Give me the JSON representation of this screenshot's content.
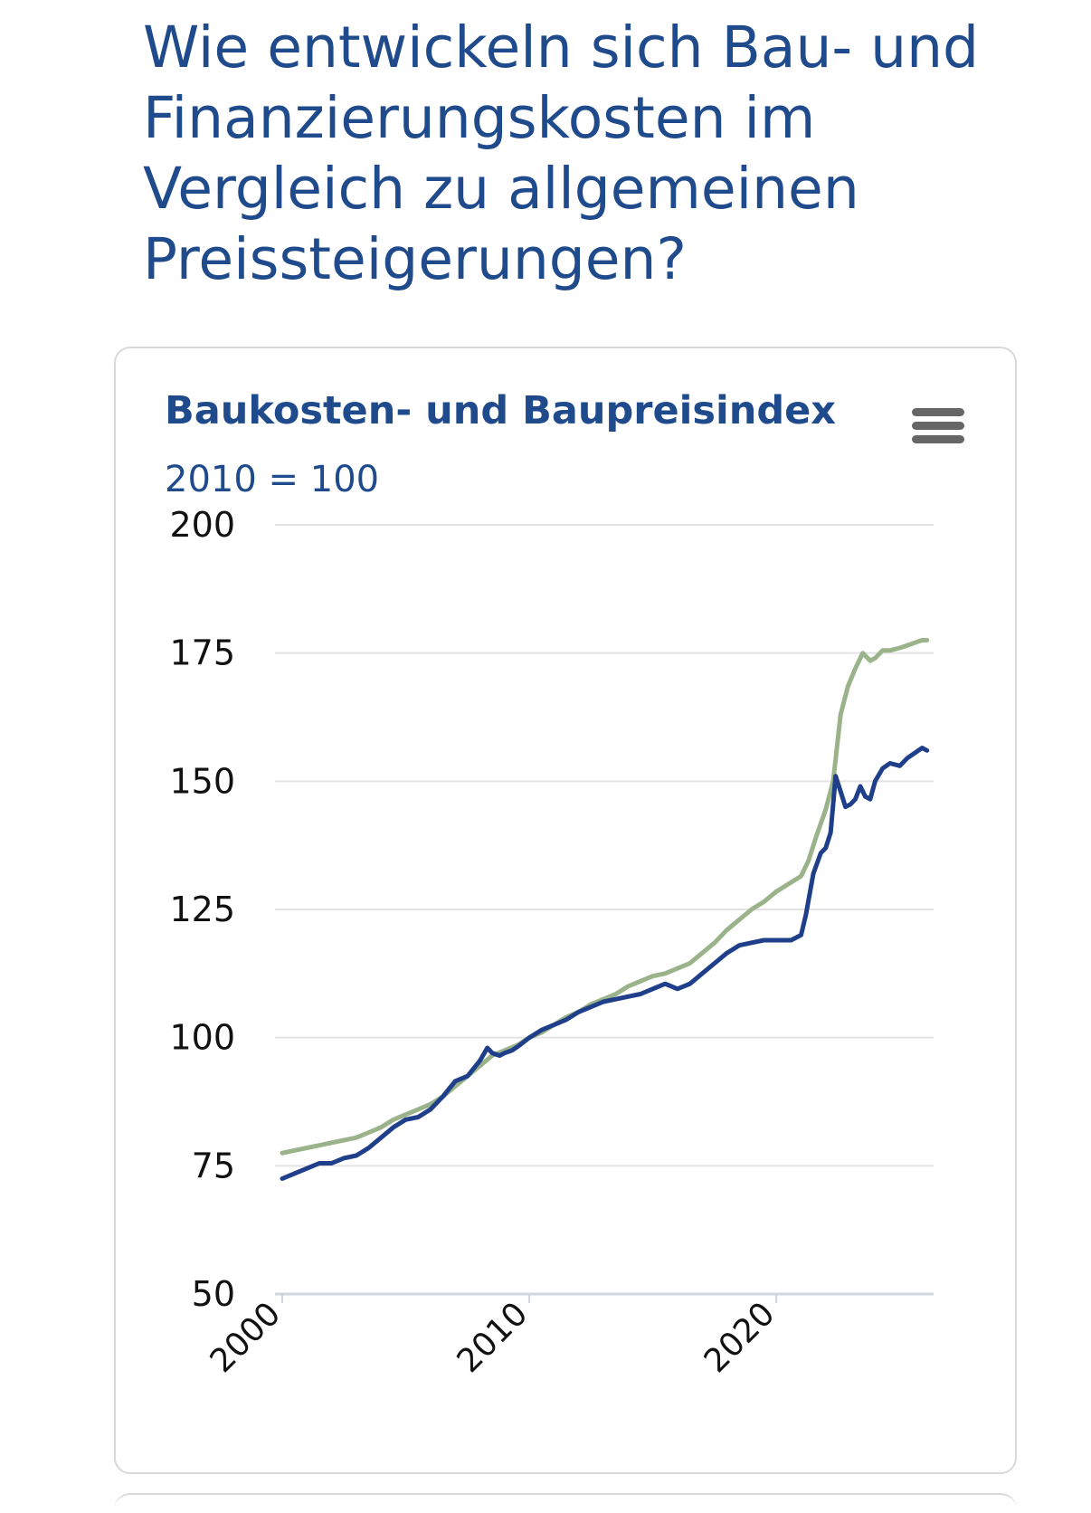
{
  "page": {
    "title": "Wie entwickeln sich Bau- und Finanzierungskosten im Vergleich zu allgemeinen Preissteigerungen?"
  },
  "chart_data": {
    "type": "line",
    "title": "Baukosten- und Baupreisindex",
    "subtitle": "2010 = 100",
    "xlabel": "",
    "ylabel": "",
    "ylim": [
      50,
      200
    ],
    "xlim": [
      2000,
      2026
    ],
    "y_ticks": [
      "50",
      "75",
      "100",
      "125",
      "150",
      "175",
      "200"
    ],
    "x_ticks": [
      "2000",
      "2010",
      "2020"
    ],
    "grid": true,
    "legend": "none",
    "colors": {
      "series_a": "#1f3f8a",
      "series_b": "#9bb38a"
    },
    "series": [
      {
        "color": "#1f3f8a",
        "x": [
          2000.0,
          2000.5,
          2001.0,
          2001.5,
          2002.0,
          2002.5,
          2003.0,
          2003.5,
          2004.0,
          2004.5,
          2005.0,
          2005.5,
          2006.0,
          2006.5,
          2007.0,
          2007.5,
          2008.0,
          2008.3,
          2008.5,
          2008.8,
          2009.0,
          2009.3,
          2009.6,
          2010.0,
          2010.5,
          2011.0,
          2011.5,
          2012.0,
          2012.5,
          2013.0,
          2013.5,
          2014.0,
          2014.5,
          2015.0,
          2015.5,
          2016.0,
          2016.5,
          2017.0,
          2017.5,
          2018.0,
          2018.5,
          2019.0,
          2019.5,
          2020.0,
          2020.3,
          2020.6,
          2021.0,
          2021.2,
          2021.5,
          2021.8,
          2022.0,
          2022.2,
          2022.4,
          2022.6,
          2022.8,
          2023.0,
          2023.2,
          2023.4,
          2023.6,
          2023.8,
          2024.0,
          2024.3,
          2024.6,
          2025.0,
          2025.3,
          2025.6,
          2025.9,
          2026.1
        ],
        "y": [
          72.5,
          73.5,
          74.5,
          75.5,
          75.5,
          76.5,
          77.0,
          78.5,
          80.5,
          82.5,
          84.0,
          84.5,
          86.0,
          88.5,
          91.5,
          92.5,
          95.5,
          98.0,
          97.0,
          96.5,
          97.0,
          97.5,
          98.5,
          100.0,
          101.5,
          102.5,
          103.5,
          105.0,
          106.0,
          107.0,
          107.5,
          108.0,
          108.5,
          109.5,
          110.5,
          109.5,
          110.5,
          112.5,
          114.5,
          116.5,
          118.0,
          118.5,
          119.0,
          119.0,
          119.0,
          119.0,
          120.0,
          124.0,
          132.0,
          136.0,
          137.0,
          140.0,
          151.0,
          148.0,
          145.0,
          145.5,
          146.5,
          149.0,
          147.0,
          146.5,
          150.0,
          152.5,
          153.5,
          153.0,
          154.5,
          155.5,
          156.5,
          156.0
        ]
      },
      {
        "color": "#9bb38a",
        "x": [
          2000.0,
          2000.5,
          2001.0,
          2001.5,
          2002.0,
          2002.5,
          2003.0,
          2003.5,
          2004.0,
          2004.5,
          2005.0,
          2005.5,
          2006.0,
          2006.5,
          2007.0,
          2007.5,
          2008.0,
          2008.5,
          2009.0,
          2009.5,
          2010.0,
          2010.5,
          2011.0,
          2011.5,
          2012.0,
          2012.5,
          2013.0,
          2013.5,
          2014.0,
          2014.5,
          2015.0,
          2015.5,
          2016.0,
          2016.5,
          2017.0,
          2017.5,
          2018.0,
          2018.5,
          2019.0,
          2019.5,
          2020.0,
          2020.5,
          2021.0,
          2021.3,
          2021.6,
          2022.0,
          2022.3,
          2022.6,
          2022.9,
          2023.2,
          2023.5,
          2023.8,
          2024.0,
          2024.3,
          2024.6,
          2025.0,
          2025.3,
          2025.6,
          2025.9,
          2026.1
        ],
        "y": [
          77.5,
          78.0,
          78.5,
          79.0,
          79.5,
          80.0,
          80.5,
          81.5,
          82.5,
          84.0,
          85.0,
          86.0,
          87.0,
          88.5,
          90.5,
          92.5,
          94.5,
          96.5,
          97.5,
          98.5,
          100.0,
          101.0,
          102.5,
          104.0,
          105.0,
          106.5,
          107.5,
          108.5,
          110.0,
          111.0,
          112.0,
          112.5,
          113.5,
          114.5,
          116.5,
          118.5,
          121.0,
          123.0,
          125.0,
          126.5,
          128.5,
          130.0,
          131.5,
          134.5,
          139.0,
          144.5,
          150.0,
          163.0,
          168.5,
          172.0,
          175.0,
          173.5,
          174.0,
          175.5,
          175.5,
          176.0,
          176.5,
          177.0,
          177.5,
          177.5
        ]
      }
    ]
  }
}
